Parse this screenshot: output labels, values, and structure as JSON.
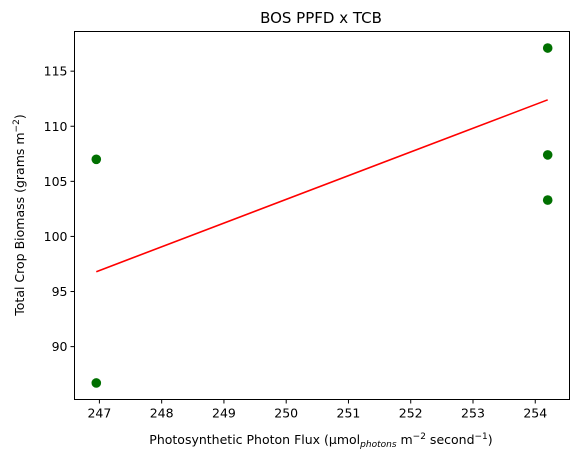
{
  "chart_data": {
    "type": "scatter",
    "title": "BOS PPFD x TCB",
    "xlabel": {
      "main": "Photosynthetic Photon Flux (µmol",
      "sub": "photons",
      "mid1": " m",
      "sup1": "−2",
      "mid2": " second",
      "sup2": "−1",
      "end": ")"
    },
    "ylabel": {
      "main": "Total Crop Biomass (grams m",
      "sup": "−2",
      "end": ")"
    },
    "xlim": [
      246.6,
      254.55
    ],
    "ylim": [
      85.2,
      118.6
    ],
    "xticks": [
      247,
      248,
      249,
      250,
      251,
      252,
      253,
      254
    ],
    "yticks": [
      90,
      95,
      100,
      105,
      110,
      115
    ],
    "grid": false,
    "points": {
      "color": "#007000",
      "x": [
        246.95,
        246.95,
        254.2,
        254.2,
        254.2
      ],
      "y": [
        107.0,
        86.7,
        117.1,
        107.4,
        103.3
      ]
    },
    "trendline": {
      "color": "#ff0000",
      "x": [
        246.95,
        254.2
      ],
      "y": [
        96.8,
        112.4
      ]
    }
  }
}
